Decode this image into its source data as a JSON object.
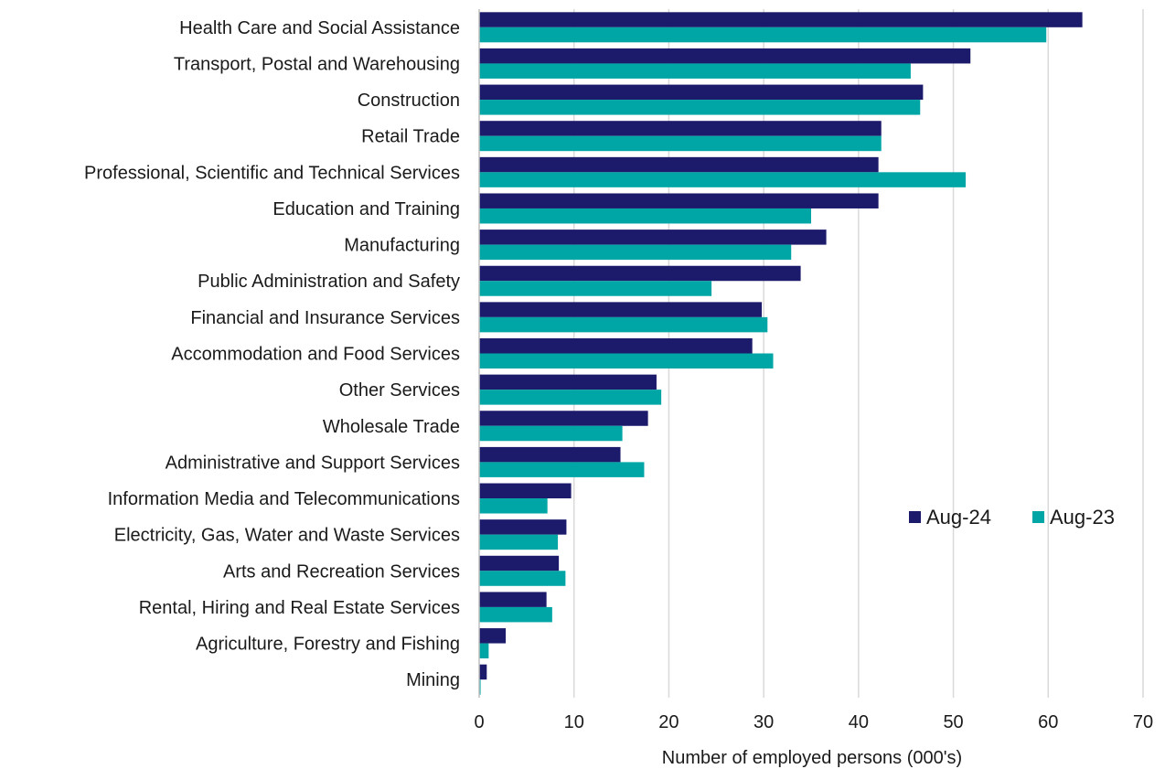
{
  "chart_data": {
    "type": "bar",
    "orientation": "horizontal",
    "categories": [
      "Health Care and Social Assistance",
      "Transport, Postal and Warehousing",
      "Construction",
      "Retail Trade",
      "Professional, Scientific and Technical Services",
      "Education and Training",
      "Manufacturing",
      "Public Administration and Safety",
      "Financial and Insurance Services",
      "Accommodation and Food Services",
      "Other Services",
      "Wholesale Trade",
      "Administrative and Support Services",
      "Information Media and Telecommunications",
      "Electricity, Gas, Water and Waste Services",
      "Arts and Recreation Services",
      "Rental, Hiring and Real Estate Services",
      "Agriculture, Forestry and Fishing",
      "Mining"
    ],
    "series": [
      {
        "name": "Aug-24",
        "color": "#1c1a6b",
        "values": [
          63.6,
          51.8,
          46.8,
          42.4,
          42.1,
          42.1,
          36.6,
          33.9,
          29.8,
          28.8,
          18.7,
          17.8,
          14.9,
          9.7,
          9.2,
          8.4,
          7.1,
          2.8,
          0.8
        ]
      },
      {
        "name": "Aug-23",
        "color": "#00a6a6",
        "values": [
          59.8,
          45.5,
          46.5,
          42.4,
          51.3,
          35.0,
          32.9,
          24.5,
          30.4,
          31.0,
          19.2,
          15.1,
          17.4,
          7.2,
          8.3,
          9.1,
          7.7,
          1.0,
          0.15
        ]
      }
    ],
    "xlabel": "Number of employed persons (000's)",
    "ylabel": "",
    "xlim": [
      0,
      70
    ],
    "xticks": [
      0,
      10,
      20,
      30,
      40,
      50,
      60,
      70
    ],
    "grid": "vertical",
    "legend_position": "right-middle"
  }
}
